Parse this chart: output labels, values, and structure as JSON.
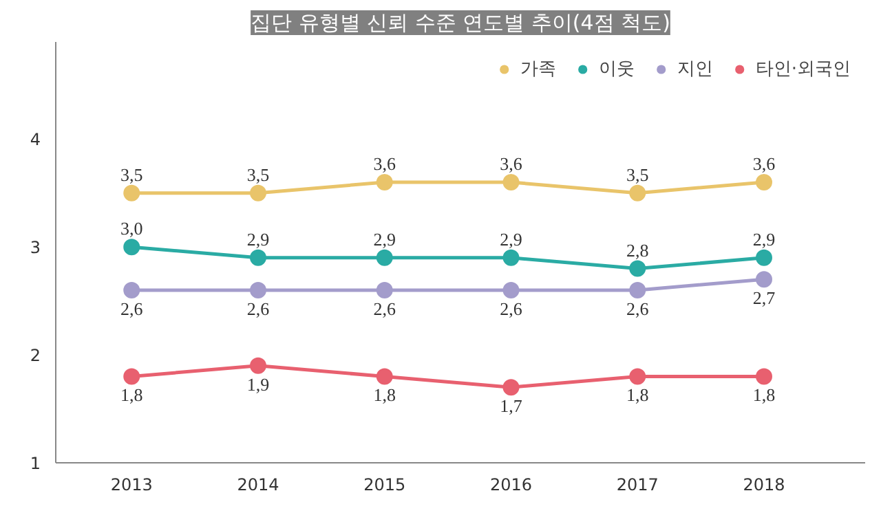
{
  "chart_data": {
    "type": "line",
    "title": "집단 유형별 신뢰 수준 연도별 추이(4점 척도)",
    "categories": [
      "2013",
      "2014",
      "2015",
      "2016",
      "2017",
      "2018"
    ],
    "series": [
      {
        "name": "가족",
        "color": "#e9c46a",
        "values": [
          3.5,
          3.5,
          3.6,
          3.6,
          3.5,
          3.6
        ],
        "value_labels": [
          "3,5",
          "3,5",
          "3,6",
          "3,6",
          "3,5",
          "3,6"
        ]
      },
      {
        "name": "이웃",
        "color": "#2aaba4",
        "values": [
          3.0,
          2.9,
          2.9,
          2.9,
          2.8,
          2.9
        ],
        "value_labels": [
          "3,0",
          "2,9",
          "2,9",
          "2,9",
          "2,8",
          "2,9"
        ]
      },
      {
        "name": "지인",
        "color": "#a39ccb",
        "values": [
          2.6,
          2.6,
          2.6,
          2.6,
          2.6,
          2.7
        ],
        "value_labels": [
          "2,6",
          "2,6",
          "2,6",
          "2,6",
          "2,6",
          "2,7"
        ]
      },
      {
        "name": "타인·외국인",
        "color": "#e8606f",
        "values": [
          1.8,
          1.9,
          1.8,
          1.7,
          1.8,
          1.8
        ],
        "value_labels": [
          "1,8",
          "1,9",
          "1,8",
          "1,7",
          "1,8",
          "1,8"
        ]
      }
    ],
    "ylim": [
      1,
      4.9
    ],
    "yticks": [
      1,
      2,
      3,
      4
    ],
    "grid": false,
    "legend": "top right",
    "marker": "circle",
    "line_style": "solid"
  }
}
